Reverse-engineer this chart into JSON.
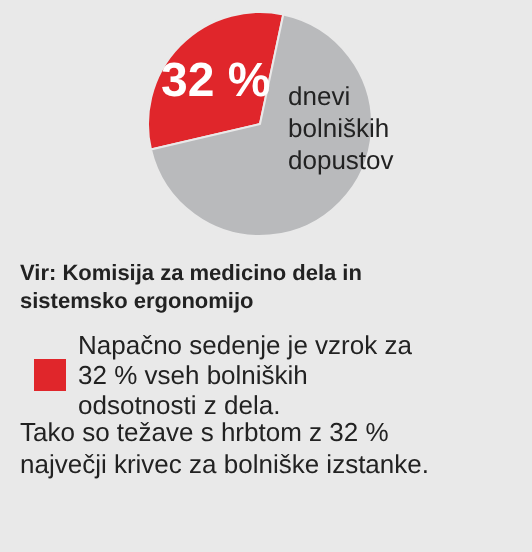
{
  "chart_data": {
    "type": "pie",
    "categories": [
      "Napačno sedenje je vzrok za 32 % vseh bolniških odsotnosti z dela.",
      null
    ],
    "values": [
      32,
      68
    ],
    "colors": [
      "#e0262b",
      "#b9babc"
    ],
    "value_labels": [
      "32 %",
      null
    ],
    "legend": "bottom",
    "annotations": [
      "dnevi bolniških dopustov",
      "Vir: Komisija za medicino dela in sistemsko ergonomijo",
      "Tako so težave s hrbtom z 32 % največji krivec za bolniške izstanke."
    ]
  }
}
